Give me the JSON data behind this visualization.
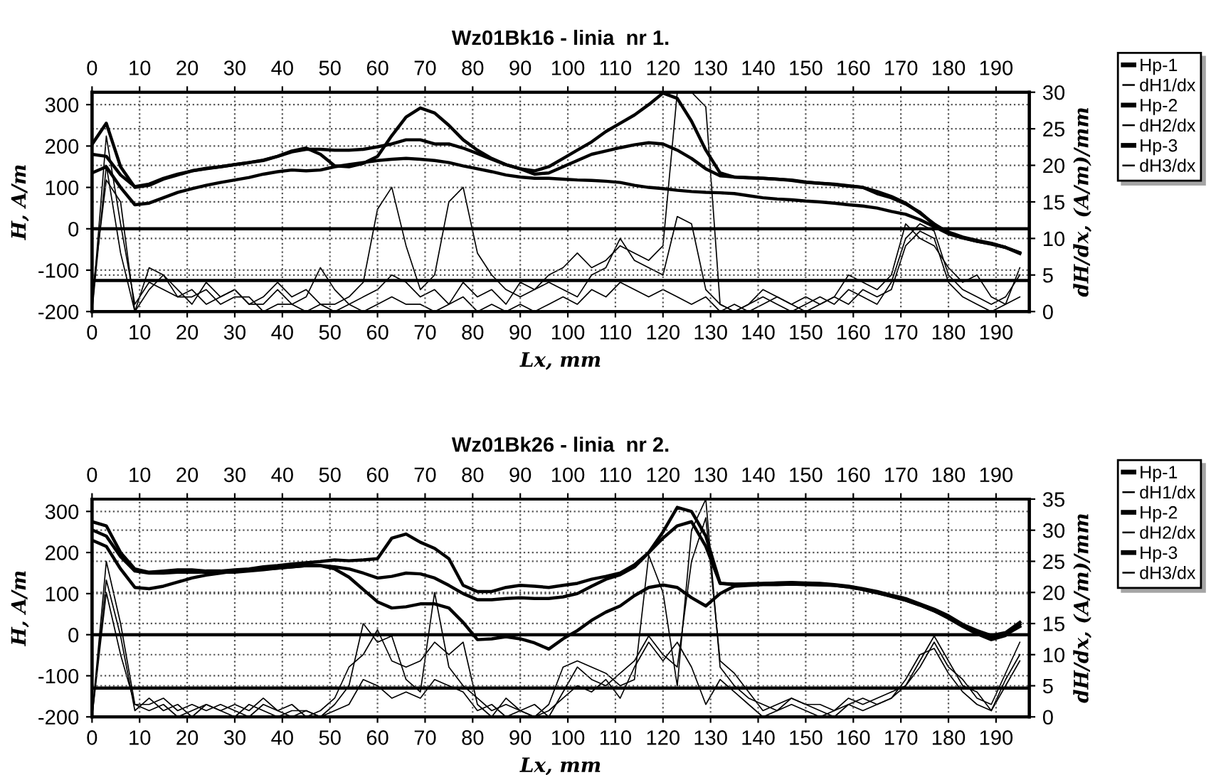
{
  "chart_data": [
    {
      "type": "line",
      "title": "Wz01Bk16 - linia  nr 1.",
      "xlabel": "Lx, mm",
      "ylabel": "H, A/m",
      "y2label": "dH/dx, (A/m)/mm",
      "x": [
        0,
        3,
        6,
        9,
        12,
        15,
        18,
        21,
        24,
        27,
        30,
        33,
        36,
        39,
        42,
        45,
        48,
        51,
        54,
        57,
        60,
        63,
        66,
        69,
        72,
        75,
        78,
        81,
        84,
        87,
        90,
        93,
        96,
        99,
        102,
        105,
        108,
        111,
        114,
        117,
        120,
        123,
        126,
        129,
        132,
        135,
        138,
        141,
        144,
        147,
        150,
        153,
        156,
        159,
        162,
        165,
        168,
        171,
        174,
        177,
        180,
        183,
        186,
        189,
        192,
        195
      ],
      "xlim": [
        0,
        197
      ],
      "xticks": [
        0,
        10,
        20,
        30,
        40,
        50,
        60,
        70,
        80,
        90,
        100,
        110,
        120,
        130,
        140,
        150,
        160,
        170,
        180,
        190
      ],
      "x2lim": [
        0,
        197
      ],
      "x2ticks": [
        0,
        10,
        20,
        30,
        40,
        50,
        60,
        70,
        80,
        90,
        100,
        110,
        120,
        130,
        140,
        150,
        160,
        170,
        180,
        190
      ],
      "ylim": [
        -200,
        330
      ],
      "yticks": [
        -200,
        -100,
        0,
        100,
        200,
        300
      ],
      "y2lim": [
        0,
        30
      ],
      "y2ticks": [
        0,
        5,
        10,
        15,
        20,
        25,
        30
      ],
      "grid": true,
      "legend": "right",
      "line_style": "solid",
      "marker": "none",
      "ref_lines": [
        {
          "axis": "y",
          "value": 0,
          "color": "#000000"
        },
        {
          "axis": "y",
          "value": -125,
          "color": "#000000"
        }
      ],
      "series": [
        {
          "name": "Hp-1",
          "color": "#000000",
          "values": [
            204,
            255,
            150,
            100,
            105,
            120,
            130,
            140,
            145,
            150,
            155,
            160,
            165,
            175,
            188,
            195,
            180,
            152,
            150,
            158,
            175,
            225,
            270,
            292,
            280,
            250,
            215,
            190,
            170,
            155,
            145,
            140,
            150,
            170,
            190,
            210,
            235,
            255,
            275,
            300,
            328,
            315,
            260,
            190,
            135,
            125,
            123,
            122,
            120,
            117,
            112,
            110,
            107,
            103,
            100,
            85,
            75,
            60,
            40,
            10,
            -8,
            -20,
            -28,
            -35,
            -45,
            -58
          ]
        },
        {
          "name": "dH1/dx",
          "axis": "y2",
          "color": "#000000",
          "values": [
            0,
            24,
            12,
            1,
            4,
            3,
            2,
            3,
            1,
            2,
            3,
            1,
            2,
            4,
            2,
            3,
            1,
            1,
            2,
            4,
            14,
            17,
            9,
            3,
            5,
            15,
            17,
            8,
            5,
            3,
            2,
            3,
            5,
            6,
            8,
            6,
            7,
            9,
            8,
            7,
            9,
            30,
            30,
            28,
            1,
            0,
            1,
            2,
            1,
            0,
            1,
            2,
            1,
            3,
            2,
            1,
            4,
            10,
            12,
            11,
            5,
            3,
            2,
            1,
            2,
            5
          ]
        },
        {
          "name": "Hp-2",
          "color": "#000000",
          "values": [
            180,
            175,
            130,
            102,
            108,
            122,
            132,
            140,
            146,
            150,
            155,
            160,
            166,
            175,
            186,
            192,
            192,
            190,
            190,
            192,
            198,
            205,
            215,
            215,
            205,
            205,
            195,
            182,
            168,
            155,
            145,
            132,
            135,
            150,
            165,
            180,
            188,
            196,
            203,
            208,
            205,
            190,
            170,
            145,
            128,
            125,
            124,
            122,
            120,
            118,
            113,
            110,
            108,
            104,
            100,
            90,
            78,
            62,
            38,
            12,
            -10,
            -22,
            -30,
            -37,
            -45,
            -60
          ]
        },
        {
          "name": "dH2/dx",
          "axis": "y2",
          "color": "#000000",
          "values": [
            2,
            18,
            15,
            0,
            6,
            5,
            3,
            1,
            4,
            2,
            3,
            1,
            1,
            3,
            1,
            2,
            6,
            3,
            1,
            2,
            3,
            5,
            4,
            2,
            3,
            1,
            4,
            2,
            3,
            1,
            4,
            3,
            4,
            3,
            2,
            5,
            6,
            10,
            7,
            6,
            5,
            13,
            12,
            3,
            1,
            0,
            1,
            3,
            2,
            1,
            2,
            1,
            2,
            5,
            4,
            3,
            5,
            12,
            10,
            9,
            6,
            4,
            5,
            2,
            1,
            6
          ]
        },
        {
          "name": "Hp-3",
          "color": "#000000",
          "values": [
            135,
            150,
            100,
            58,
            62,
            75,
            88,
            97,
            105,
            112,
            118,
            124,
            132,
            138,
            142,
            140,
            142,
            150,
            155,
            160,
            165,
            168,
            170,
            168,
            165,
            160,
            152,
            145,
            138,
            130,
            125,
            122,
            122,
            120,
            118,
            117,
            115,
            112,
            105,
            100,
            97,
            93,
            90,
            88,
            87,
            85,
            80,
            75,
            72,
            70,
            67,
            65,
            62,
            58,
            55,
            50,
            42,
            35,
            22,
            5,
            -12,
            -22,
            -30,
            -36,
            -45,
            -58
          ]
        },
        {
          "name": "dH3/dx",
          "axis": "y2",
          "color": "#000000",
          "values": [
            0,
            20,
            8,
            0,
            3,
            5,
            2,
            2,
            3,
            1,
            2,
            2,
            0,
            1,
            1,
            0,
            1,
            0,
            1,
            0,
            1,
            2,
            1,
            1,
            0,
            1,
            2,
            0,
            1,
            0,
            1,
            0,
            1,
            2,
            1,
            3,
            2,
            4,
            3,
            2,
            3,
            2,
            1,
            2,
            0,
            1,
            0,
            1,
            2,
            1,
            0,
            1,
            2,
            1,
            3,
            2,
            3,
            9,
            11,
            10,
            4,
            2,
            1,
            0,
            1,
            2
          ]
        }
      ]
    },
    {
      "type": "line",
      "title": "Wz01Bk26 - linia  nr 2.",
      "xlabel": "Lx, mm",
      "ylabel": "H, A/m",
      "y2label": "dH/dx, (A/m)/mm",
      "x": [
        0,
        3,
        6,
        9,
        12,
        15,
        18,
        21,
        24,
        27,
        30,
        33,
        36,
        39,
        42,
        45,
        48,
        51,
        54,
        57,
        60,
        63,
        66,
        69,
        72,
        75,
        78,
        81,
        84,
        87,
        90,
        93,
        96,
        99,
        102,
        105,
        108,
        111,
        114,
        117,
        120,
        123,
        126,
        129,
        132,
        135,
        138,
        141,
        144,
        147,
        150,
        153,
        156,
        159,
        162,
        165,
        168,
        171,
        174,
        177,
        180,
        183,
        186,
        189,
        192,
        195
      ],
      "xlim": [
        0,
        197
      ],
      "xticks": [
        0,
        10,
        20,
        30,
        40,
        50,
        60,
        70,
        80,
        90,
        100,
        110,
        120,
        130,
        140,
        150,
        160,
        170,
        180,
        190
      ],
      "x2lim": [
        0,
        197
      ],
      "x2ticks": [
        0,
        10,
        20,
        30,
        40,
        50,
        60,
        70,
        80,
        90,
        100,
        110,
        120,
        130,
        140,
        150,
        160,
        170,
        180,
        190
      ],
      "ylim": [
        -200,
        330
      ],
      "yticks": [
        -200,
        -100,
        0,
        100,
        200,
        300
      ],
      "y2lim": [
        0,
        35
      ],
      "y2ticks": [
        0,
        5,
        10,
        15,
        20,
        25,
        30,
        35
      ],
      "grid": true,
      "legend": "right",
      "line_style": "solid",
      "marker": "none",
      "ref_lines": [
        {
          "axis": "y",
          "value": 0,
          "color": "#000000"
        },
        {
          "axis": "y",
          "value": -130,
          "color": "#000000"
        }
      ],
      "series": [
        {
          "name": "Hp-1",
          "color": "#000000",
          "values": [
            275,
            265,
            200,
            160,
            152,
            155,
            158,
            158,
            155,
            155,
            158,
            160,
            165,
            168,
            172,
            175,
            178,
            182,
            180,
            182,
            185,
            235,
            245,
            225,
            210,
            185,
            120,
            105,
            105,
            115,
            120,
            118,
            115,
            120,
            125,
            135,
            142,
            150,
            170,
            200,
            250,
            310,
            300,
            240,
            125,
            122,
            124,
            125,
            126,
            127,
            126,
            125,
            122,
            118,
            112,
            105,
            96,
            88,
            75,
            62,
            46,
            25,
            10,
            -2,
            5,
            30
          ]
        },
        {
          "name": "dH1/dx",
          "axis": "y2",
          "color": "#000000",
          "values": [
            0,
            25,
            15,
            2,
            2,
            3,
            1,
            2,
            1,
            2,
            1,
            0,
            2,
            1,
            0,
            1,
            0,
            2,
            5,
            15,
            12,
            13,
            6,
            4,
            20,
            8,
            5,
            3,
            1,
            2,
            1,
            0,
            2,
            8,
            9,
            8,
            7,
            5,
            6,
            26,
            20,
            5,
            30,
            35,
            8,
            5,
            3,
            2,
            1,
            3,
            2,
            1,
            0,
            2,
            3,
            2,
            3,
            5,
            8,
            12,
            8,
            6,
            3,
            2,
            7,
            12
          ]
        },
        {
          "name": "Hp-2",
          "color": "#000000",
          "values": [
            255,
            240,
            190,
            155,
            150,
            150,
            152,
            152,
            152,
            152,
            152,
            155,
            158,
            162,
            165,
            168,
            168,
            165,
            160,
            150,
            138,
            142,
            150,
            148,
            138,
            120,
            100,
            85,
            85,
            88,
            90,
            88,
            88,
            92,
            100,
            118,
            135,
            146,
            165,
            200,
            235,
            265,
            275,
            215,
            125,
            123,
            123,
            124,
            126,
            126,
            125,
            123,
            120,
            116,
            110,
            102,
            94,
            84,
            72,
            58,
            42,
            22,
            5,
            -8,
            0,
            20
          ]
        },
        {
          "name": "dH2/dx",
          "axis": "y2",
          "color": "#000000",
          "values": [
            0,
            22,
            13,
            1,
            3,
            1,
            2,
            0,
            2,
            1,
            2,
            1,
            3,
            1,
            2,
            0,
            1,
            3,
            8,
            10,
            14,
            9,
            8,
            9,
            12,
            10,
            12,
            2,
            0,
            3,
            1,
            2,
            0,
            4,
            8,
            6,
            5,
            7,
            9,
            13,
            10,
            8,
            25,
            32,
            9,
            7,
            4,
            1,
            2,
            3,
            2,
            2,
            1,
            3,
            2,
            3,
            4,
            5,
            9,
            13,
            9,
            5,
            4,
            1,
            6,
            10
          ]
        },
        {
          "name": "Hp-3",
          "color": "#000000",
          "values": [
            230,
            215,
            160,
            115,
            112,
            118,
            128,
            138,
            145,
            150,
            155,
            158,
            160,
            162,
            165,
            168,
            168,
            160,
            140,
            110,
            80,
            65,
            68,
            75,
            75,
            65,
            30,
            -12,
            -10,
            -5,
            -10,
            -20,
            -35,
            -10,
            10,
            35,
            55,
            70,
            95,
            115,
            121,
            115,
            90,
            70,
            100,
            118,
            120,
            122,
            122,
            123,
            122,
            121,
            120,
            116,
            110,
            102,
            93,
            84,
            72,
            58,
            40,
            20,
            2,
            -12,
            -2,
            25
          ]
        },
        {
          "name": "dH3/dx",
          "axis": "y2",
          "color": "#000000",
          "values": [
            0,
            20,
            10,
            2,
            1,
            2,
            0,
            1,
            2,
            1,
            0,
            2,
            1,
            0,
            1,
            1,
            0,
            1,
            2,
            6,
            5,
            3,
            4,
            3,
            6,
            5,
            4,
            1,
            2,
            0,
            1,
            0,
            1,
            3,
            5,
            4,
            6,
            3,
            8,
            12,
            9,
            12,
            8,
            2,
            6,
            4,
            2,
            0,
            1,
            2,
            1,
            0,
            1,
            2,
            1,
            2,
            3,
            6,
            10,
            11,
            7,
            4,
            2,
            1,
            5,
            9
          ]
        }
      ]
    }
  ]
}
